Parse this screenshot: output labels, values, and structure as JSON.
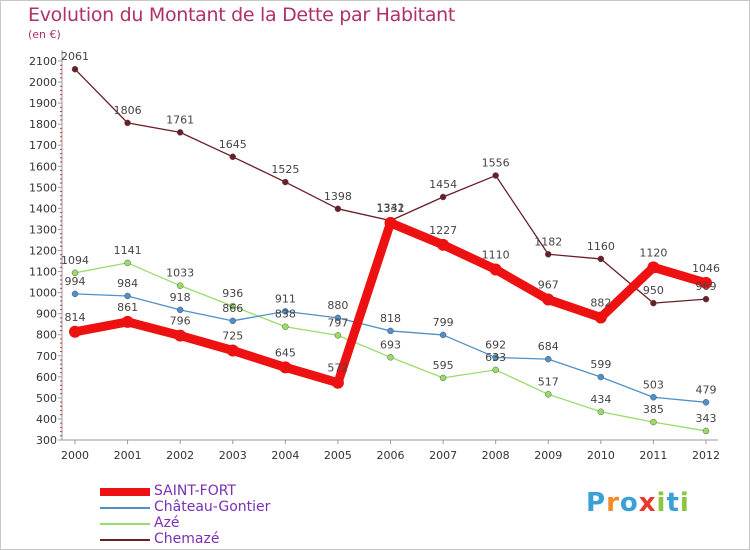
{
  "title": "Evolution du Montant de la Dette par Habitant",
  "unit": "(en €)",
  "logo": [
    "P",
    "r",
    "o",
    "x",
    "i",
    "t",
    "i"
  ],
  "chart_data": {
    "type": "line",
    "title": "Evolution du Montant de la Dette par Habitant",
    "ylabel": "(en €)",
    "x": [
      "2000",
      "2001",
      "2002",
      "2003",
      "2004",
      "2005",
      "2006",
      "2007",
      "2008",
      "2009",
      "2010",
      "2011",
      "2012"
    ],
    "ylim": [
      300,
      2100
    ],
    "yticks": [
      300,
      400,
      500,
      600,
      700,
      800,
      900,
      1000,
      1100,
      1200,
      1300,
      1400,
      1500,
      1600,
      1700,
      1800,
      1900,
      2000,
      2100
    ],
    "grid": false,
    "legend_position": "bottom-left",
    "series": [
      {
        "name": "SAINT-FORT",
        "color": "#ee1111",
        "values": [
          814,
          861,
          796,
          725,
          645,
          572,
          1331,
          1227,
          1110,
          967,
          882,
          1120,
          1046
        ]
      },
      {
        "name": "Château-Gontier",
        "color": "#4f8fca",
        "values": [
          994,
          984,
          918,
          866,
          911,
          880,
          818,
          799,
          692,
          684,
          599,
          503,
          479
        ]
      },
      {
        "name": "Azé",
        "color": "#99dd66",
        "values": [
          1094,
          1141,
          1033,
          936,
          838,
          797,
          693,
          595,
          633,
          517,
          434,
          385,
          343
        ]
      },
      {
        "name": "Chemazé",
        "color": "#6b1e28",
        "values": [
          2061,
          1806,
          1761,
          1645,
          1525,
          1398,
          1342,
          1454,
          1556,
          1182,
          1160,
          950,
          969
        ]
      }
    ]
  }
}
